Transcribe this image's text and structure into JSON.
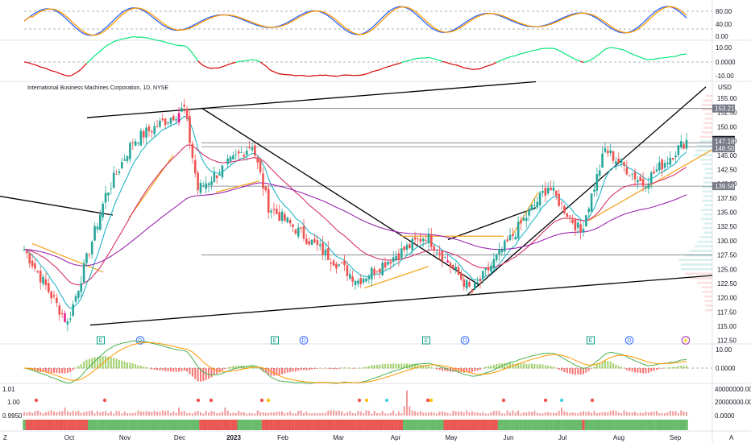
{
  "header": {
    "title": "International Business Machines Corporation, 1D, NYSE",
    "currency": "USD"
  },
  "colors": {
    "up": "#26a69a",
    "down": "#ef5350",
    "magenta": "#e91e8c",
    "ema_short": "#22b5c8",
    "ema_mid": "#d6336c",
    "ema_long": "#9c27b0",
    "stoch_k": "#2962ff",
    "stoch_d": "#ff9800",
    "osc_pos": "#00e676",
    "osc_neg": "#d50000",
    "hist_pos": "#8bc34a",
    "hist_neg": "#ef5350",
    "volume": "#ef9a9a",
    "orange_lines": "#f5a623"
  },
  "price_axis": {
    "ticks": [
      "155.00",
      "152.50",
      "150.00",
      "147.50",
      "145.00",
      "142.50",
      "140.00",
      "137.50",
      "135.00",
      "132.50",
      "130.00",
      "127.50",
      "125.00",
      "122.50",
      "120.00",
      "117.50",
      "115.00",
      "112.50"
    ],
    "labels": [
      {
        "text": "153.21",
        "style": "gray"
      },
      {
        "text": "147.68",
        "style": "black"
      },
      {
        "text": "147.18",
        "style": "gray"
      },
      {
        "text": "146.50",
        "style": "gray"
      },
      {
        "text": "139.58",
        "style": "gray"
      }
    ]
  },
  "stoch_axis": {
    "ticks": [
      "80.00",
      "40.00",
      "0.00"
    ]
  },
  "osc_axis": {
    "ticks": [
      "10.00",
      "0.0000",
      "-10.00"
    ]
  },
  "macd_axis": {
    "ticks": [
      "10.00",
      "0.0000"
    ]
  },
  "volume_axis": {
    "left_ticks": [
      "1.01",
      "1.00",
      "0.9950"
    ],
    "right_ticks": [
      "40000000.00",
      "20000000.00",
      "0.0000"
    ]
  },
  "time_axis": {
    "ticks": [
      "Oct",
      "Nov",
      "Dec",
      "2023",
      "Feb",
      "Mar",
      "Apr",
      "May",
      "Jun",
      "Jul",
      "Aug",
      "Sep"
    ]
  },
  "event_badges": [
    "E",
    "D",
    "E",
    "D",
    "E",
    "D",
    "E",
    "D",
    "⚡"
  ],
  "footer": {
    "left": "Z",
    "right": "A"
  },
  "chart_data": {
    "type": "candlestick",
    "title": "International Business Machines Corporation, 1D, NYSE",
    "period": "Sep 2022 – Sep 2023, daily",
    "ylim": [
      112.5,
      157.5
    ],
    "price_path_key_points": [
      {
        "date": "2022-09-20",
        "close": 128.5
      },
      {
        "date": "2022-10-13",
        "close": 115.5
      },
      {
        "date": "2022-11-01",
        "close": 138
      },
      {
        "date": "2022-11-16",
        "close": 147.5
      },
      {
        "date": "2022-12-13",
        "close": 153.21
      },
      {
        "date": "2022-12-20",
        "close": 139
      },
      {
        "date": "2023-01-17",
        "close": 147
      },
      {
        "date": "2023-01-25",
        "close": 136
      },
      {
        "date": "2023-03-13",
        "close": 123
      },
      {
        "date": "2023-04-18",
        "close": 131
      },
      {
        "date": "2023-05-12",
        "close": 121
      },
      {
        "date": "2023-06-21",
        "close": 139.58
      },
      {
        "date": "2023-07-07",
        "close": 131.5
      },
      {
        "date": "2023-07-21",
        "close": 146
      },
      {
        "date": "2023-08-09",
        "close": 140
      },
      {
        "date": "2023-09-01",
        "close": 147.68
      }
    ],
    "last_price": 147.68,
    "horizontal_levels": [
      153.21,
      147.18,
      146.5,
      139.58,
      127.5
    ],
    "indicators": [
      "Stochastic (80/40)",
      "Oscillator (+/-10)",
      "EMA short",
      "EMA mid",
      "EMA long",
      "MACD",
      "Volume"
    ],
    "volume_ylim": [
      0,
      40000000
    ]
  }
}
